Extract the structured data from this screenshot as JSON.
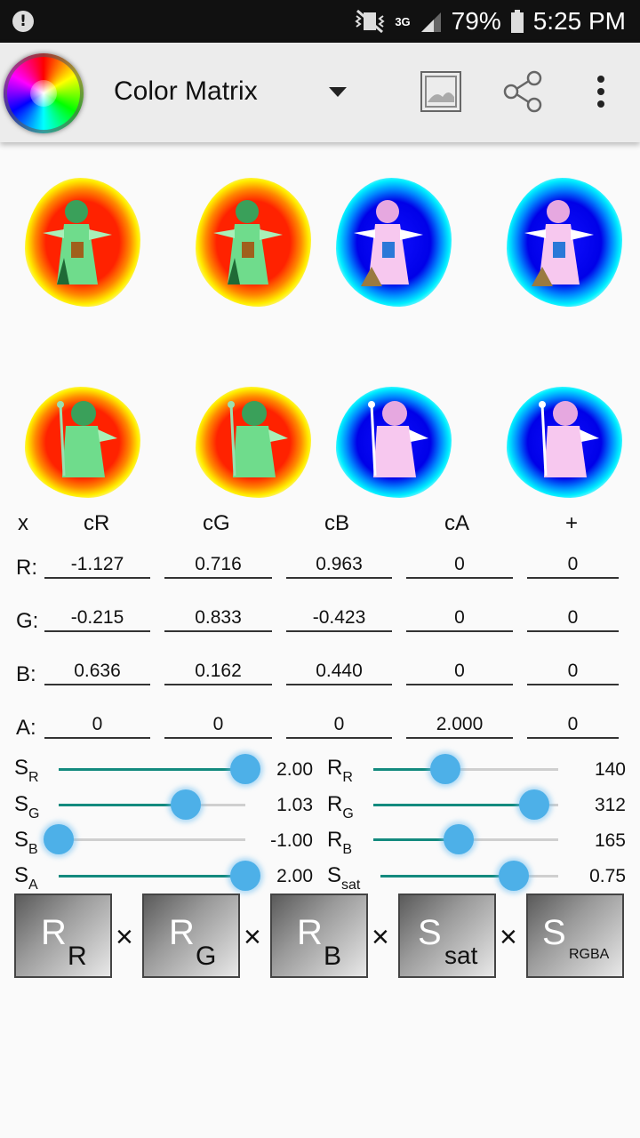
{
  "statusbar": {
    "alert_icon": "!",
    "network": "3G",
    "battery": "79%",
    "time": "5:25 PM"
  },
  "toolbar": {
    "title": "Color Matrix"
  },
  "icons": {
    "wheel": "color-wheel-icon",
    "image": "image-icon",
    "share": "share-icon",
    "more": "more-vert-icon"
  },
  "matrix": {
    "headers": [
      "x",
      "cR",
      "cG",
      "cB",
      "cA",
      "+"
    ],
    "rows": [
      {
        "label": "R:",
        "values": [
          "-1.127",
          "0.716",
          "0.963",
          "0",
          "0"
        ]
      },
      {
        "label": "G:",
        "values": [
          "-0.215",
          "0.833",
          "-0.423",
          "0",
          "0"
        ]
      },
      {
        "label": "B:",
        "values": [
          "0.636",
          "0.162",
          "0.440",
          "0",
          "0"
        ]
      },
      {
        "label": "A:",
        "values": [
          "0",
          "0",
          "0",
          "2.000",
          "0"
        ]
      }
    ]
  },
  "sliders_left": [
    {
      "label": "S",
      "sub": "R",
      "value": "2.00",
      "fraction": 1.0
    },
    {
      "label": "S",
      "sub": "G",
      "value": "1.03",
      "fraction": 0.68
    },
    {
      "label": "S",
      "sub": "B",
      "value": "-1.00",
      "fraction": 0.0
    },
    {
      "label": "S",
      "sub": "A",
      "value": "2.00",
      "fraction": 1.0
    }
  ],
  "sliders_right": [
    {
      "label": "R",
      "sub": "R",
      "value": "140",
      "fraction": 0.39
    },
    {
      "label": "R",
      "sub": "G",
      "value": "312",
      "fraction": 0.87
    },
    {
      "label": "R",
      "sub": "B",
      "value": "165",
      "fraction": 0.46
    },
    {
      "label": "S",
      "sub": "sat",
      "value": "0.75",
      "fraction": 0.75
    }
  ],
  "pipeline": {
    "tiles": [
      {
        "big": "R",
        "sub": "R"
      },
      {
        "big": "R",
        "sub": "G"
      },
      {
        "big": "R",
        "sub": "B"
      },
      {
        "big": "S",
        "sub": "sat"
      },
      {
        "big": "S",
        "sub": "RGBA"
      }
    ],
    "operator": "×"
  },
  "colors": {
    "accent": "#138a7e",
    "knob": "#4db0e8",
    "toolbar": "#ececec"
  }
}
